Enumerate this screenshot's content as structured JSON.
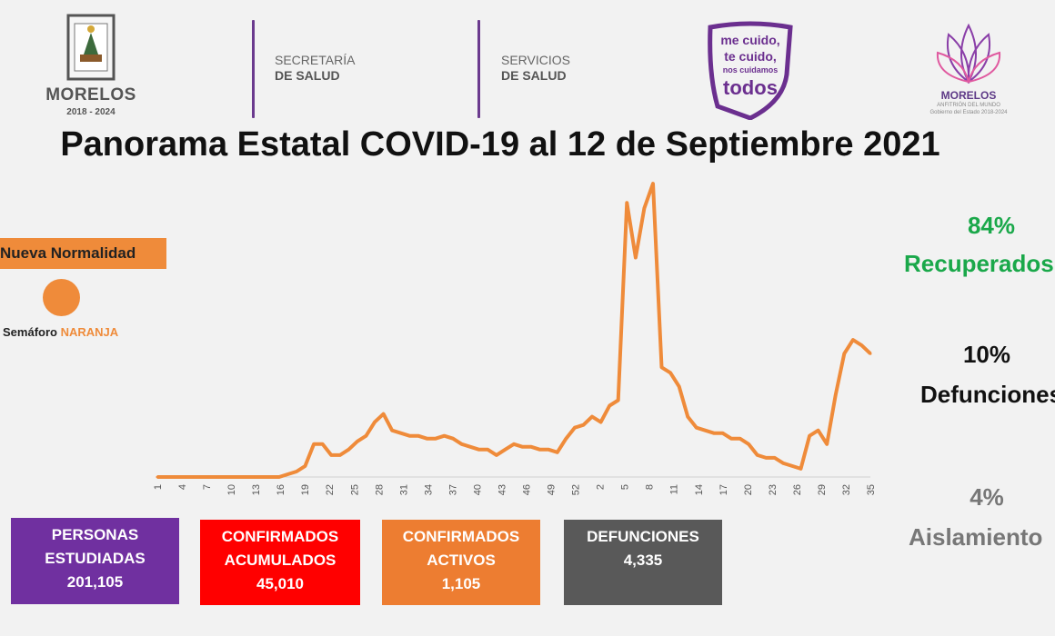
{
  "header": {
    "state_logo": {
      "name": "MORELOS",
      "years": "2018 - 2024"
    },
    "department1": {
      "line1": "SECRETARÍA",
      "line2": "DE SALUD"
    },
    "department2": {
      "line1": "SERVICIOS",
      "line2": "DE SALUD"
    },
    "slogan": {
      "line1": "me cuido,",
      "line2": "te cuido,",
      "line3": "nos cuidamos",
      "line4": "todos"
    },
    "host_logo": {
      "name": "MORELOS",
      "sub1": "ANFITRIÓN DEL MUNDO",
      "sub2": "Gobierno del Estado 2018-2024"
    }
  },
  "title": "Panorama Estatal COVID-19 al 12 de Septiembre 2021",
  "status": {
    "phase_label": "Nueva Normalidad",
    "semaforo_label": "Semáforo ",
    "semaforo_color_name": "NARANJA",
    "semaforo_color": "#ef8b3a"
  },
  "right_stats": {
    "recovered": {
      "percent": "84%",
      "label": "Recuperados",
      "color": "#1aa84a"
    },
    "deaths": {
      "percent": "10%",
      "label": "Defunciones",
      "color": "#111111"
    },
    "isolation": {
      "percent": "4%",
      "label": "Aislamiento",
      "color": "#777777"
    }
  },
  "boxes": [
    {
      "id": "personas",
      "line1": "PERSONAS",
      "line2": "ESTUDIADAS",
      "value": "201,105",
      "color": "#7030a0"
    },
    {
      "id": "acumulados",
      "line1": "CONFIRMADOS",
      "line2": "ACUMULADOS",
      "value": "45,010",
      "color": "#ff0000"
    },
    {
      "id": "activos",
      "line1": "CONFIRMADOS",
      "line2": "ACTIVOS",
      "value": "1,105",
      "color": "#ed7d31"
    },
    {
      "id": "defunciones",
      "line1": "DEFUNCIONES",
      "line2": "",
      "value": "4,335",
      "color": "#595959"
    }
  ],
  "chart_data": {
    "type": "line",
    "title": "",
    "xlabel": "",
    "ylabel": "",
    "line_color": "#ef8b3a",
    "tick_labels": [
      "1",
      "4",
      "7",
      "10",
      "13",
      "16",
      "19",
      "22",
      "25",
      "28",
      "31",
      "34",
      "37",
      "40",
      "43",
      "46",
      "49",
      "52",
      "2",
      "5",
      "8",
      "11",
      "14",
      "17",
      "20",
      "23",
      "26",
      "29",
      "32",
      "35"
    ],
    "ylim": [
      0,
      110
    ],
    "values": [
      0,
      0,
      0,
      0,
      0,
      0,
      0,
      0,
      0,
      0,
      0,
      0,
      0,
      0,
      0,
      1,
      2,
      4,
      12,
      12,
      8,
      8,
      10,
      13,
      15,
      20,
      23,
      17,
      16,
      15,
      15,
      14,
      14,
      15,
      14,
      12,
      11,
      10,
      10,
      8,
      10,
      12,
      11,
      11,
      10,
      10,
      9,
      14,
      18,
      19,
      22,
      20,
      26,
      28,
      100,
      80,
      98,
      107,
      40,
      38,
      33,
      22,
      18,
      17,
      16,
      16,
      14,
      14,
      12,
      8,
      7,
      7,
      5,
      4,
      3,
      15,
      17,
      12,
      30,
      45,
      50,
      48,
      45
    ]
  }
}
